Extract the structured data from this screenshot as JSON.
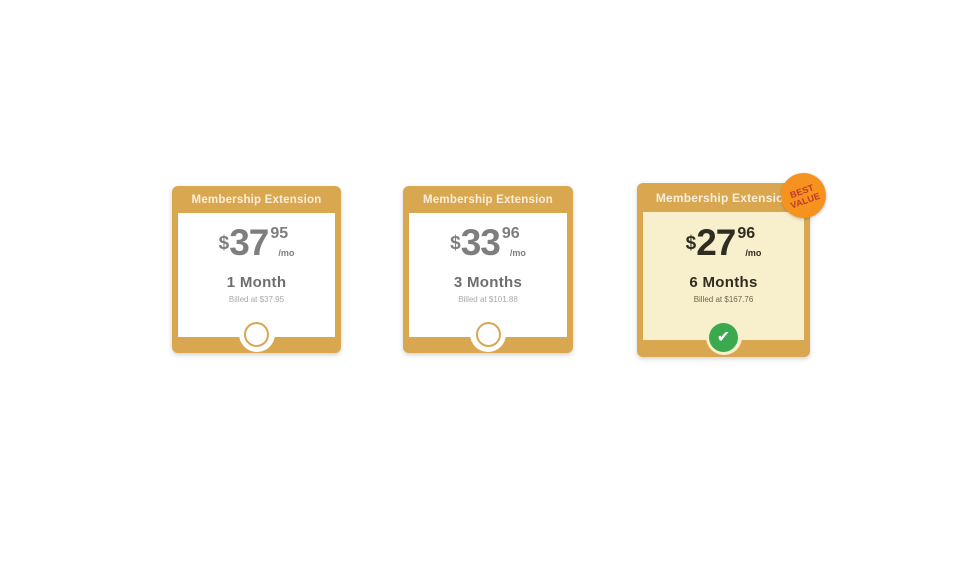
{
  "colors": {
    "gold": "#d9a750",
    "selected_body_bg": "#f8f0cc",
    "badge_orange": "#f6921e",
    "badge_text_red": "#c0392b",
    "check_green": "#3baa4f",
    "header_text": "#f8eedc",
    "price_gray": "#7e7e7e",
    "selected_text_dark": "#2f2c20"
  },
  "icons": {
    "check": "✔"
  },
  "badge": {
    "line1": "BEST",
    "line2": "VALUE"
  },
  "plans": [
    {
      "header": "Membership Extension",
      "currency": "$",
      "price_int": "37",
      "price_cents": "95",
      "per": "/mo",
      "duration": "1 Month",
      "billed": "Billed at $37.95",
      "selected": false
    },
    {
      "header": "Membership Extension",
      "currency": "$",
      "price_int": "33",
      "price_cents": "96",
      "per": "/mo",
      "duration": "3 Months",
      "billed": "Billed at $101.88",
      "selected": false
    },
    {
      "header": "Membership Extension",
      "currency": "$",
      "price_int": "27",
      "price_cents": "96",
      "per": "/mo",
      "duration": "6 Months",
      "billed": "Billed at $167.76",
      "selected": true
    }
  ]
}
